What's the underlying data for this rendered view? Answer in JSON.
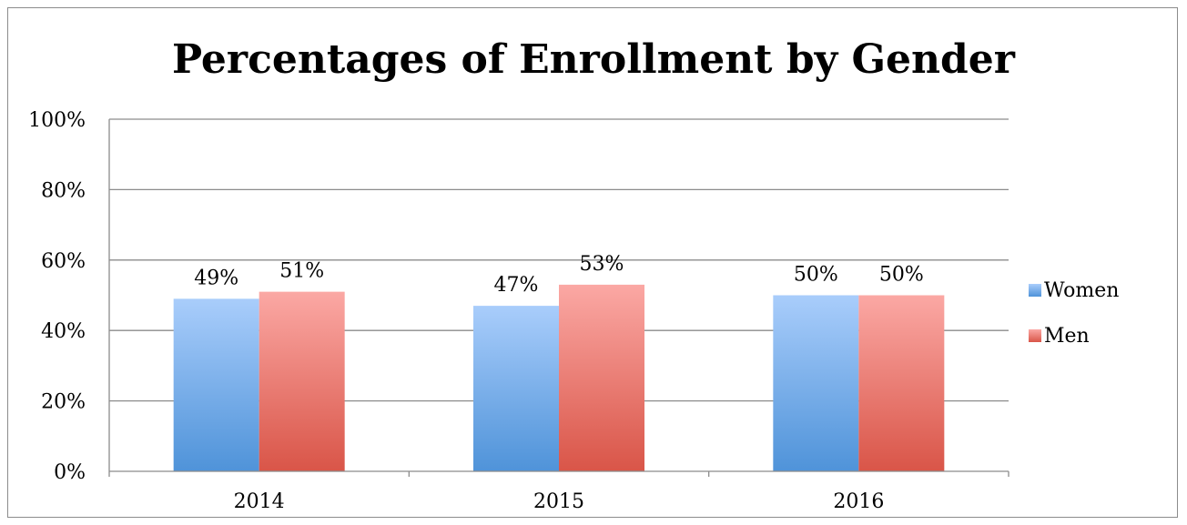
{
  "chart_data": {
    "type": "bar",
    "title": "Percentages of Enrollment by Gender",
    "xlabel": "",
    "ylabel": "",
    "categories": [
      "2014",
      "2015",
      "2016"
    ],
    "series": [
      {
        "name": "Women",
        "values": [
          49,
          47,
          50
        ],
        "labels": [
          "49%",
          "47%",
          "50%"
        ],
        "color": "#6fa8e8"
      },
      {
        "name": "Men",
        "values": [
          51,
          53,
          50
        ],
        "labels": [
          "51%",
          "53%",
          "50%"
        ],
        "color": "#e8706a"
      }
    ],
    "ylim": [
      0,
      100
    ],
    "yticks": [
      0,
      20,
      40,
      60,
      80,
      100
    ],
    "ytick_labels": [
      "0%",
      "20%",
      "40%",
      "60%",
      "80%",
      "100%"
    ],
    "grid": true,
    "legend": "right"
  }
}
